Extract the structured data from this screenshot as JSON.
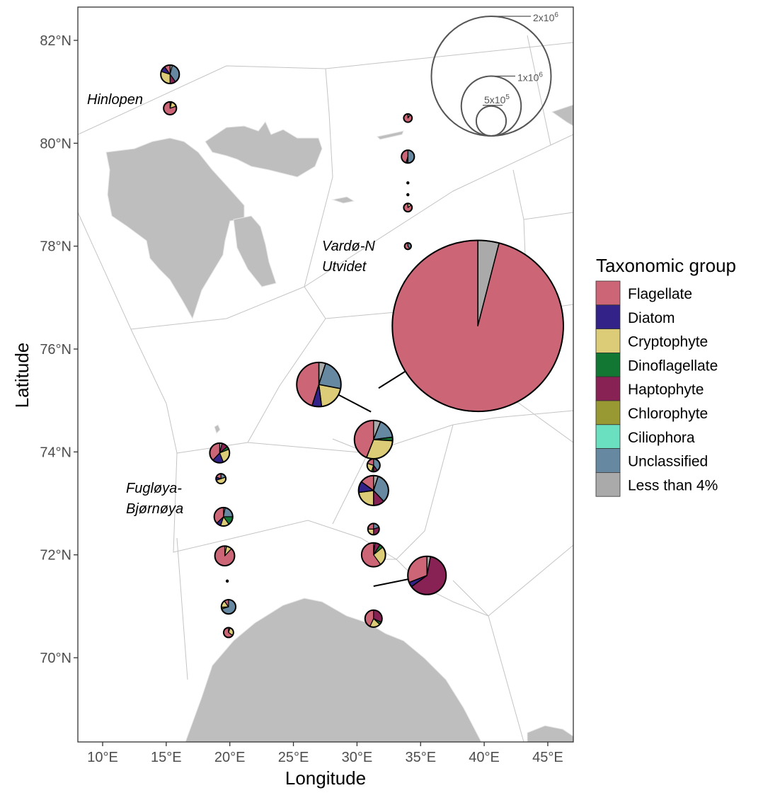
{
  "axes": {
    "xlabel": "Longitude",
    "ylabel": "Latitude",
    "x_ticks": [
      "10°E",
      "15°E",
      "20°E",
      "25°E",
      "30°E",
      "35°E",
      "40°E",
      "45°E"
    ],
    "x_tick_values": [
      10,
      15,
      20,
      25,
      30,
      35,
      40,
      45
    ],
    "y_ticks": [
      "82°N",
      "80°N",
      "78°N",
      "76°N",
      "74°N",
      "72°N",
      "70°N"
    ],
    "y_tick_values": [
      82,
      80,
      78,
      76,
      74,
      72,
      70
    ],
    "xlim": [
      8.1,
      47.0
    ],
    "ylim": [
      68.3,
      82.6
    ]
  },
  "region_labels": [
    {
      "lines": [
        "Hinlopen"
      ]
    },
    {
      "lines": [
        "Vardø-N",
        "Utvidet"
      ]
    },
    {
      "lines": [
        "Fugløya-",
        "Bjørnøya"
      ]
    }
  ],
  "size_legend": {
    "labels": [
      "2x10",
      "1x10",
      "5x10"
    ],
    "exponents": [
      "6",
      "6",
      "5"
    ],
    "values": [
      2000000,
      1000000,
      500000
    ]
  },
  "legend": {
    "title": "Taxonomic group",
    "placement": "right",
    "items": [
      {
        "label": "Flagellate",
        "color": "#CC6677"
      },
      {
        "label": "Diatom",
        "color": "#332288"
      },
      {
        "label": "Cryptophyte",
        "color": "#DDCC77"
      },
      {
        "label": "Dinoflagellate",
        "color": "#117733"
      },
      {
        "label": "Haptophyte",
        "color": "#882255"
      },
      {
        "label": "Chlorophyte",
        "color": "#999933"
      },
      {
        "label": "Ciliophora",
        "color": "#6BE0C0"
      },
      {
        "label": "Unclassified",
        "color": "#6688A0"
      },
      {
        "label": "Less than 4%",
        "color": "#AAAAAA"
      }
    ]
  },
  "colors": {
    "land": "#BEBEBE",
    "region_border": "#BBBBBB"
  },
  "chart_data": {
    "type": "pie-map",
    "groups": [
      "Flagellate",
      "Diatom",
      "Cryptophyte",
      "Dinoflagellate",
      "Haptophyte",
      "Chlorophyte",
      "Ciliophora",
      "Unclassified",
      "Less than 4%"
    ],
    "stations": [
      {
        "lon": 15.3,
        "lat": 81.34,
        "abundance": 310000,
        "fractions": {
          "Less than 4%": 0.04,
          "Unclassified": 0.36,
          "Haptophyte": 0.1,
          "Cryptophyte": 0.3,
          "Diatom": 0.1,
          "Flagellate": 0.1
        }
      },
      {
        "lon": 15.3,
        "lat": 80.68,
        "abundance": 215000,
        "fractions": {
          "Dinoflagellate": 0.04,
          "Cryptophyte": 0.16,
          "Flagellate": 0.8
        }
      },
      {
        "lon": 34.0,
        "lat": 80.49,
        "abundance": 140000,
        "fractions": {
          "Less than 4%": 0.1,
          "Flagellate": 0.9
        }
      },
      {
        "lon": 34.0,
        "lat": 79.74,
        "abundance": 215000,
        "fractions": {
          "Unclassified": 0.5,
          "Diatom": 0.05,
          "Flagellate": 0.45
        }
      },
      {
        "lon": 34.0,
        "lat": 79.23,
        "abundance": 40000,
        "fractions": {
          "Flagellate": 1
        }
      },
      {
        "lon": 34.0,
        "lat": 79.0,
        "abundance": 40000,
        "fractions": {
          "Flagellate": 1
        }
      },
      {
        "lon": 34.0,
        "lat": 78.75,
        "abundance": 140000,
        "fractions": {
          "Cryptophyte": 0.15,
          "Flagellate": 0.85
        }
      },
      {
        "lon": 34.0,
        "lat": 78.0,
        "abundance": 110000,
        "fractions": {
          "Unclassified": 0.4,
          "Flagellate": 0.6
        }
      },
      {
        "lon": 31.7,
        "lat": 75.24,
        "abundance": 2860000,
        "offset": {
          "lon": 39.5,
          "lat": 76.45
        },
        "fractions": {
          "Less than 4%": 0.04,
          "Flagellate": 0.96
        }
      },
      {
        "lon": 31.1,
        "lat": 74.78,
        "abundance": 740000,
        "offset": {
          "lon": 27.0,
          "lat": 75.31
        },
        "fractions": {
          "Less than 4%": 0.05,
          "Unclassified": 0.23,
          "Cryptophyte": 0.2,
          "Diatom": 0.07,
          "Flagellate": 0.45
        }
      },
      {
        "lon": 31.3,
        "lat": 74.24,
        "abundance": 640000,
        "fractions": {
          "Less than 4%": 0.06,
          "Unclassified": 0.17,
          "Dinoflagellate": 0.03,
          "Cryptophyte": 0.3,
          "Flagellate": 0.44
        }
      },
      {
        "lon": 19.2,
        "lat": 73.98,
        "abundance": 330000,
        "fractions": {
          "Less than 4%": 0.04,
          "Haptophyte": 0.1,
          "Dinoflagellate": 0.05,
          "Cryptophyte": 0.25,
          "Diatom": 0.18,
          "Flagellate": 0.38
        }
      },
      {
        "lon": 19.3,
        "lat": 73.48,
        "abundance": 165000,
        "fractions": {
          "Unclassified": 0.2,
          "Diatom": 0.1,
          "Cryptophyte": 0.5,
          "Flagellate": 0.2
        }
      },
      {
        "lon": 31.3,
        "lat": 73.74,
        "abundance": 215000,
        "fractions": {
          "Unclassified": 0.4,
          "Haptophyte": 0.1,
          "Dinoflagellate": 0.05,
          "Cryptophyte": 0.25,
          "Flagellate": 0.2
        }
      },
      {
        "lon": 31.3,
        "lat": 73.25,
        "abundance": 500000,
        "fractions": {
          "Less than 4%": 0.05,
          "Unclassified": 0.33,
          "Haptophyte": 0.12,
          "Cryptophyte": 0.23,
          "Diatom": 0.12,
          "Flagellate": 0.15
        }
      },
      {
        "lon": 19.5,
        "lat": 72.74,
        "abundance": 310000,
        "fractions": {
          "Less than 4%": 0.03,
          "Unclassified": 0.22,
          "Dinoflagellate": 0.15,
          "Cryptophyte": 0.15,
          "Diatom": 0.08,
          "Flagellate": 0.37
        }
      },
      {
        "lon": 31.3,
        "lat": 72.5,
        "abundance": 190000,
        "fractions": {
          "Haptophyte": 0.3,
          "Unclassified": 0.2,
          "Cryptophyte": 0.25,
          "Flagellate": 0.25
        }
      },
      {
        "lon": 19.6,
        "lat": 71.98,
        "abundance": 330000,
        "fractions": {
          "Less than 4%": 0.03,
          "Cryptophyte": 0.09,
          "Flagellate": 0.88
        }
      },
      {
        "lon": 31.3,
        "lat": 72.0,
        "abundance": 400000,
        "fractions": {
          "Less than 4%": 0.02,
          "Haptophyte": 0.07,
          "Dinoflagellate": 0.05,
          "Cryptophyte": 0.26,
          "Flagellate": 0.6
        }
      },
      {
        "lon": 31.3,
        "lat": 71.39,
        "abundance": 640000,
        "offset": {
          "lon": 35.5,
          "lat": 71.6
        },
        "fractions": {
          "Less than 4%": 0.03,
          "Haptophyte": 0.62,
          "Diatom": 0.04,
          "Flagellate": 0.31
        }
      },
      {
        "lon": 19.8,
        "lat": 71.49,
        "abundance": 40000,
        "fractions": {
          "Flagellate": 1
        }
      },
      {
        "lon": 19.9,
        "lat": 70.99,
        "abundance": 240000,
        "fractions": {
          "Unclassified": 0.7,
          "Chlorophyte": 0.04,
          "Cryptophyte": 0.16,
          "Flagellate": 0.1
        }
      },
      {
        "lon": 19.9,
        "lat": 70.49,
        "abundance": 165000,
        "fractions": {
          "Less than 4%": 0.05,
          "Cryptophyte": 0.3,
          "Flagellate": 0.65
        }
      },
      {
        "lon": 31.3,
        "lat": 70.76,
        "abundance": 285000,
        "fractions": {
          "Haptophyte": 0.32,
          "Dinoflagellate": 0.05,
          "Cryptophyte": 0.2,
          "Flagellate": 0.43
        }
      }
    ]
  }
}
